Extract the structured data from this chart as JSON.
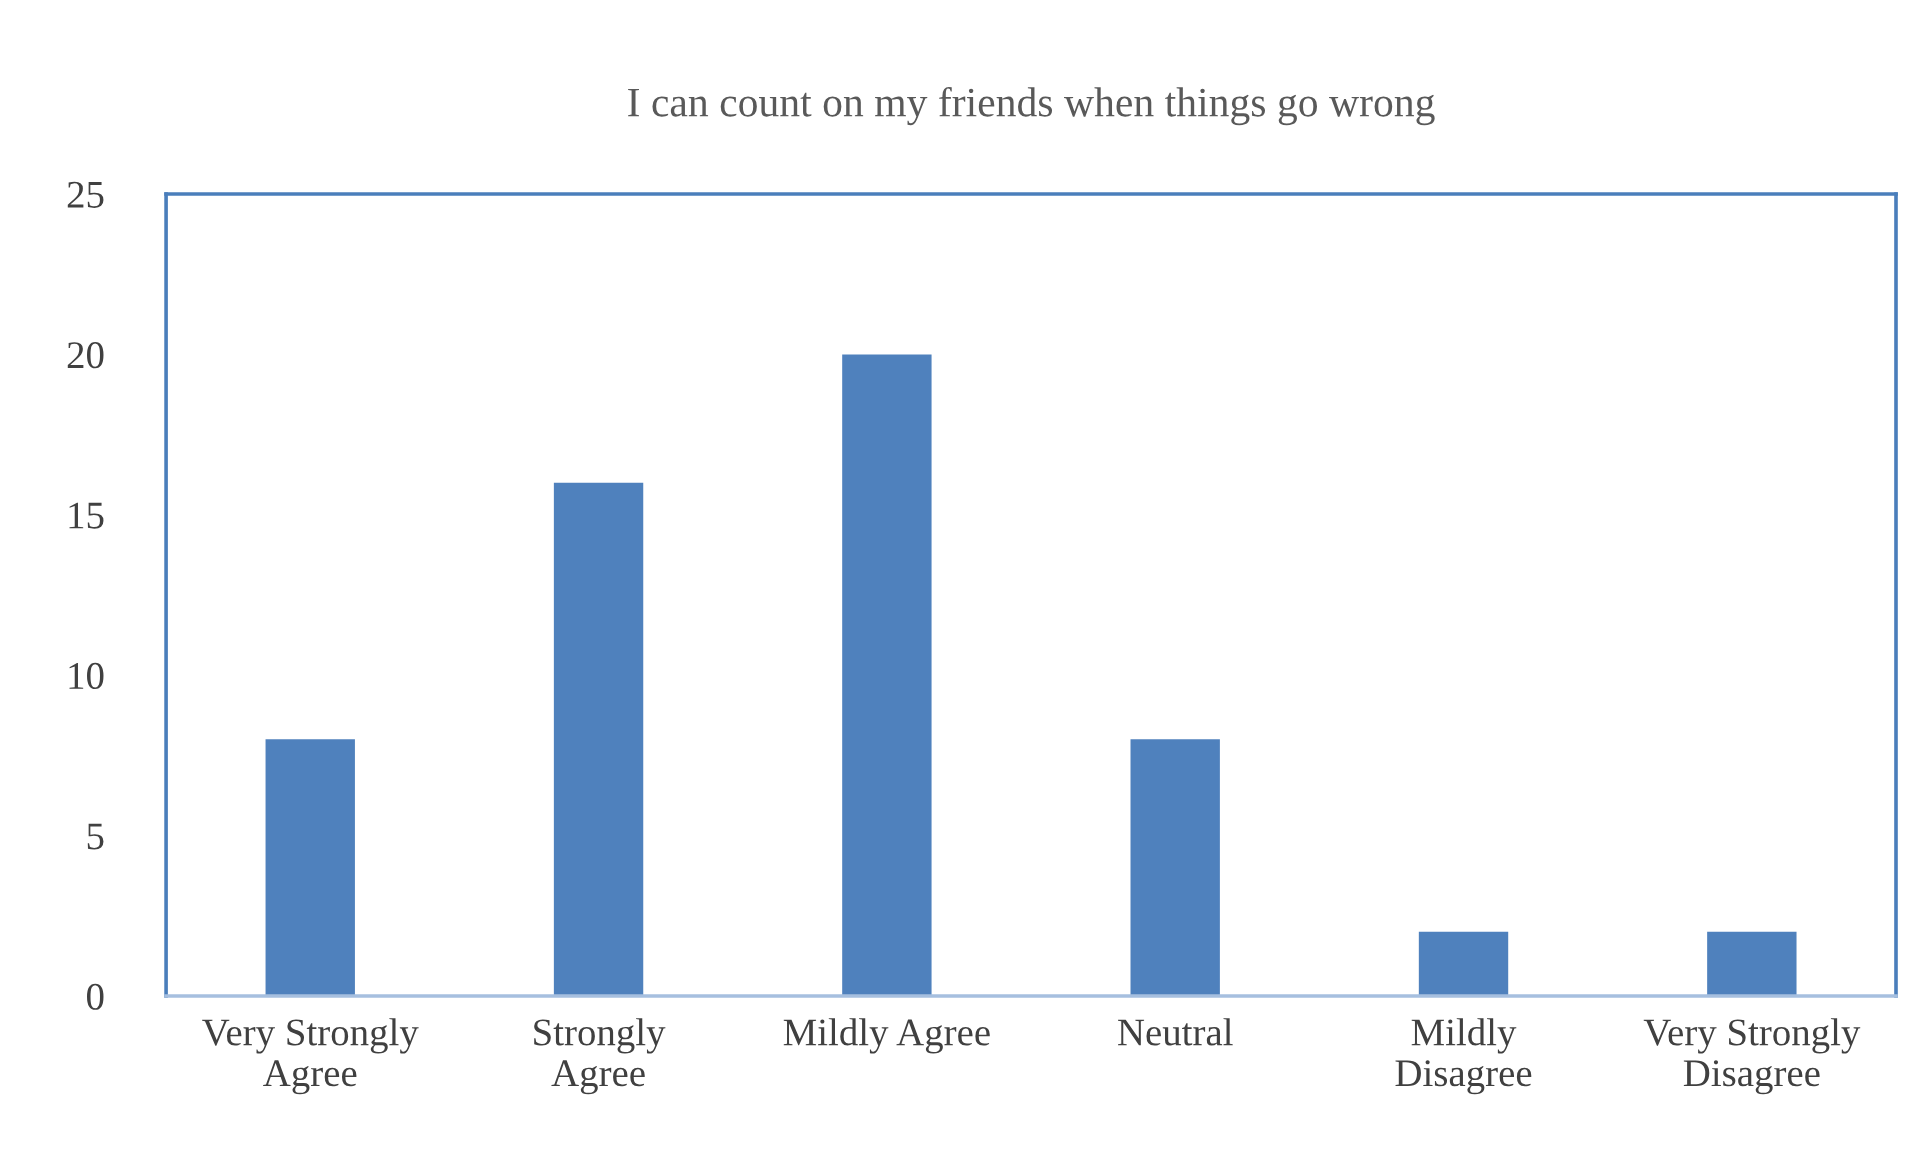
{
  "chart_data": {
    "type": "bar",
    "title": "I can count on my friends when things go wrong",
    "categories": [
      "Very Strongly\nAgree",
      "Strongly\nAgree",
      "Mildly Agree",
      "Neutral",
      "Mildly\nDisagree",
      "Very Strongly\nDisagree"
    ],
    "values": [
      8,
      16,
      20,
      8,
      2,
      2
    ],
    "color": "#4f81bd",
    "ylim": [
      0,
      25
    ],
    "yticks": [
      0,
      5,
      10,
      15,
      20,
      25
    ],
    "grid": false,
    "legend": false
  }
}
